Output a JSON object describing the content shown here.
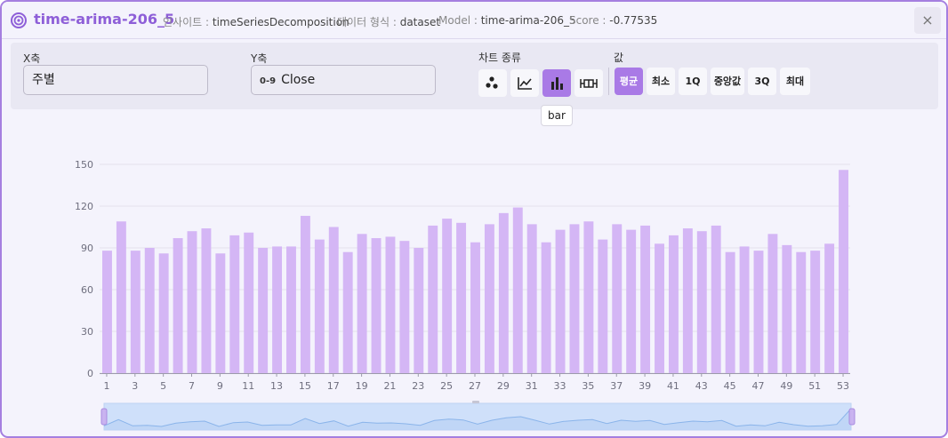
{
  "header": {
    "title": "time-arima-206_5",
    "insight_key": "인사이트 :",
    "insight_value": "timeSeriesDecomposition",
    "format_key": "데이터 형식 :",
    "format_value": "dataset",
    "model_key": "Model :",
    "model_value": "time-arima-206_5",
    "score_key": "Score :",
    "score_value": "-0.77535",
    "close_icon": "×"
  },
  "controls": {
    "x_label": "X축",
    "x_value": "주별",
    "y_label": "Y축",
    "y_prefix": "0-9",
    "y_value": "Close",
    "chart_type_label": "차트 종류",
    "chart_types": [
      "scatter-icon",
      "line-chart-icon",
      "bar-chart-icon",
      "boxplot-icon"
    ],
    "active_chart_type": "bar",
    "value_label": "값",
    "value_options": [
      "평균",
      "최소",
      "1Q",
      "중앙값",
      "3Q",
      "최대"
    ],
    "active_value": "평균",
    "tooltip": "bar"
  },
  "colors": {
    "accent": "#a97ae6",
    "bar": "#d4b6f5",
    "brush_fill": "#cfe0fa",
    "brush_line": "#8ab4ea"
  },
  "chart_data": {
    "type": "bar",
    "x": [
      1,
      2,
      3,
      4,
      5,
      6,
      7,
      8,
      9,
      10,
      11,
      12,
      13,
      14,
      15,
      16,
      17,
      18,
      19,
      20,
      21,
      22,
      23,
      24,
      25,
      26,
      27,
      28,
      29,
      30,
      31,
      32,
      33,
      34,
      35,
      36,
      37,
      38,
      39,
      40,
      41,
      42,
      43,
      44,
      45,
      46,
      47,
      48,
      49,
      50,
      51,
      52,
      53
    ],
    "x_tick_labels": [
      "1",
      "3",
      "5",
      "7",
      "9",
      "11",
      "13",
      "15",
      "17",
      "19",
      "21",
      "23",
      "25",
      "27",
      "29",
      "31",
      "33",
      "35",
      "37",
      "39",
      "41",
      "43",
      "45",
      "47",
      "49",
      "51",
      "53"
    ],
    "values": [
      88,
      109,
      88,
      90,
      86,
      97,
      102,
      104,
      86,
      99,
      101,
      90,
      91,
      91,
      113,
      96,
      105,
      87,
      100,
      97,
      98,
      95,
      90,
      106,
      111,
      108,
      94,
      107,
      115,
      119,
      107,
      94,
      103,
      107,
      109,
      96,
      107,
      103,
      106,
      93,
      99,
      104,
      102,
      106,
      87,
      91,
      88,
      100,
      92,
      87,
      88,
      93,
      146
    ],
    "ylim": [
      0,
      150
    ],
    "y_ticks": [
      "0",
      "30",
      "60",
      "90",
      "120",
      "150"
    ],
    "grid": true,
    "has_brush": true
  }
}
